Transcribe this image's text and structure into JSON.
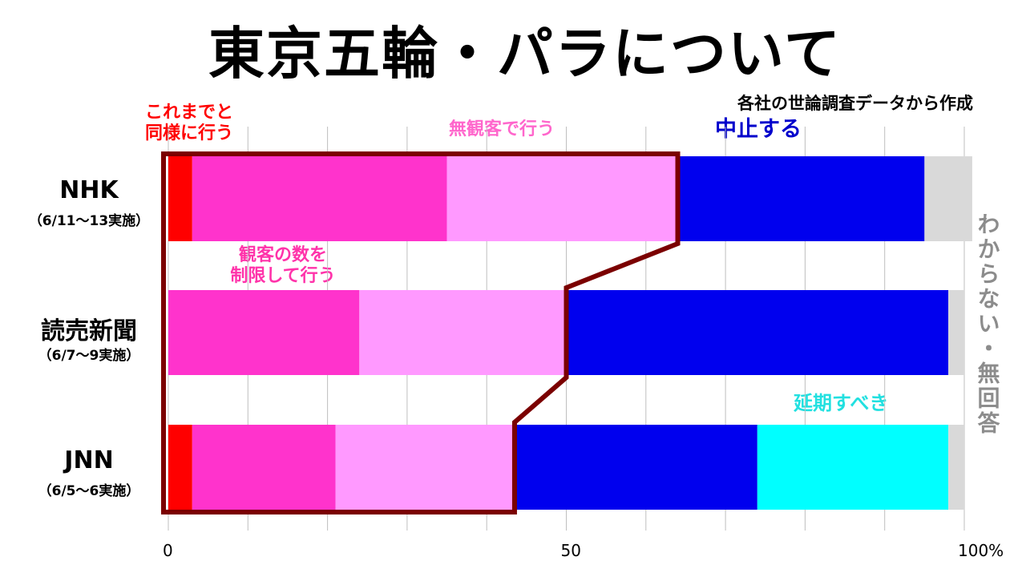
{
  "title": "東京五輪・パラについて",
  "subtitle": "各社の世論調査データから作成",
  "colors": {
    "as_usual": "#ff0000",
    "limited_spectators": "#ff33cc",
    "no_spectators": "#ff99ff",
    "cancel": "#0000ee",
    "postpone": "#00ffff",
    "dont_know": "#d9d9d9",
    "outline": "#7b0000",
    "grid": "#bfbfbf"
  },
  "category_labels": {
    "as_usual": "これまでと\n同様に行う",
    "no_spectators": "無観客で行う",
    "cancel": "中止する",
    "limited_spectators": "観客の数を\n制限して行う",
    "postpone": "延期すべき",
    "dont_know": "わからない・無回答"
  },
  "chart_data": {
    "type": "bar",
    "orientation": "horizontal",
    "stacked": true,
    "title": "東京五輪・パラについて",
    "subtitle": "各社の世論調査データから作成",
    "xlim": [
      0,
      100
    ],
    "xticks": [
      "0",
      "50",
      "100%"
    ],
    "grid": true,
    "categories": [
      {
        "name": "NHK",
        "date": "（6/11～13実施）"
      },
      {
        "name": "読売新聞",
        "date": "（6/7～9実施）"
      },
      {
        "name": "JNN",
        "date": "（6/5～6実施）"
      }
    ],
    "series": [
      {
        "key": "as_usual",
        "name": "これまでと同様に行う",
        "values": [
          3,
          0,
          3
        ]
      },
      {
        "key": "limited_spectators",
        "name": "観客の数を制限して行う",
        "values": [
          32,
          24,
          18
        ]
      },
      {
        "key": "no_spectators",
        "name": "無観客で行う",
        "values": [
          29,
          26,
          22.5
        ]
      },
      {
        "key": "cancel",
        "name": "中止する",
        "values": [
          31,
          48,
          30.5
        ]
      },
      {
        "key": "postpone",
        "name": "延期すべき",
        "values": [
          0,
          0,
          24
        ]
      },
      {
        "key": "dont_know",
        "name": "わからない・無回答",
        "values": [
          6,
          2,
          2
        ]
      }
    ]
  }
}
